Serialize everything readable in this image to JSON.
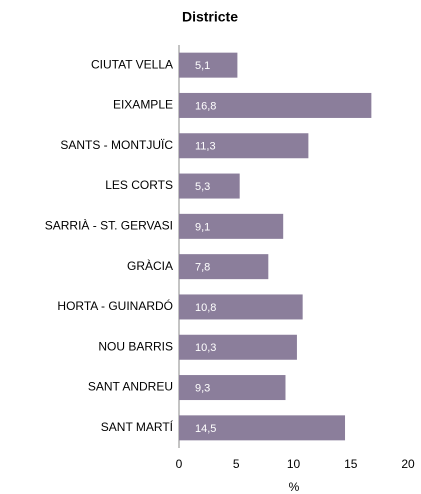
{
  "chart_data": {
    "type": "bar",
    "orientation": "horizontal",
    "title": "Districte",
    "categories": [
      "CIUTAT VELLA",
      "EIXAMPLE",
      "SANTS - MONTJUÏC",
      "LES CORTS",
      "SARRIÀ - ST. GERVASI",
      "GRÀCIA",
      "HORTA - GUINARDÓ",
      "NOU BARRIS",
      "SANT ANDREU",
      "SANT MARTÍ"
    ],
    "values": [
      5.1,
      16.8,
      11.3,
      5.3,
      9.1,
      7.8,
      10.8,
      10.3,
      9.3,
      14.5
    ],
    "value_labels": [
      "5,1",
      "16,8",
      "11,3",
      "5,3",
      "9,1",
      "7,8",
      "10,8",
      "10,3",
      "9,3",
      "14,5"
    ],
    "color": "#8b7e9b",
    "xlim": [
      0,
      20
    ],
    "xticks": [
      0,
      5,
      10,
      15,
      20
    ],
    "x_label": "%",
    "grid": false
  }
}
